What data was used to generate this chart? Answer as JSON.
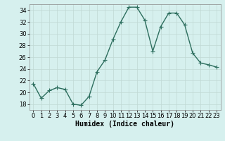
{
  "x": [
    0,
    1,
    2,
    3,
    4,
    5,
    6,
    7,
    8,
    9,
    10,
    11,
    12,
    13,
    14,
    15,
    16,
    17,
    18,
    19,
    20,
    21,
    22,
    23
  ],
  "y": [
    21.5,
    19.0,
    20.3,
    20.8,
    20.5,
    18.0,
    17.8,
    19.3,
    23.5,
    25.5,
    29.0,
    32.0,
    34.5,
    34.5,
    32.3,
    27.0,
    31.2,
    33.5,
    33.5,
    31.5,
    26.7,
    25.0,
    24.7,
    24.3
  ],
  "line_color": "#2d6e5e",
  "bg_color": "#d6f0ee",
  "grid_color": "#c0d8d4",
  "xlabel": "Humidex (Indice chaleur)",
  "ylim": [
    17,
    35
  ],
  "yticks": [
    18,
    20,
    22,
    24,
    26,
    28,
    30,
    32,
    34
  ],
  "xticks": [
    0,
    1,
    2,
    3,
    4,
    5,
    6,
    7,
    8,
    9,
    10,
    11,
    12,
    13,
    14,
    15,
    16,
    17,
    18,
    19,
    20,
    21,
    22,
    23
  ],
  "marker": "+",
  "markersize": 4,
  "linewidth": 1.0,
  "xlabel_fontsize": 7,
  "tick_fontsize": 6
}
